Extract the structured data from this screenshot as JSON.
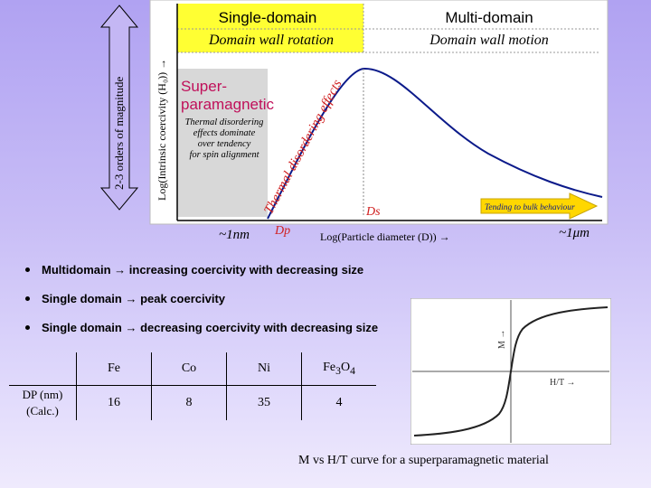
{
  "figure": {
    "orders_label": "2-3 orders of magnitude",
    "y_axis_label": "Log(Intrinsic coercivity (H₀)) →",
    "x_axis_label": "Log(Particle diameter (D)) →",
    "single_domain_title": "Single-domain",
    "single_domain_sub": "Domain wall rotation",
    "multi_domain_title": "Multi-domain",
    "multi_domain_sub": "Domain wall motion",
    "super_title_1": "Super-",
    "super_title_2": "paramagnetic",
    "thermal_note": [
      "Thermal disordering",
      "effects dominate",
      "over tendency",
      "for spin alignment"
    ],
    "thermal_effects_label": "Thermal disordering effects",
    "bulk_arrow_label": "Tending to bulk behaviour",
    "ds_label": "Ds",
    "dp_label": "Dp",
    "tick_left": "~1nm",
    "tick_right": "~1μm",
    "colors": {
      "yellow": "#ffff33",
      "pink_text": "#c0105a",
      "red_text": "#d02020",
      "curve": "#0b1a8a",
      "arrow_fill": "#ffd700"
    }
  },
  "bullets": [
    "Multidomain → increasing coercivity with decreasing size",
    "Single domain → peak coercivity",
    "Single domain → decreasing coercivity with decreasing size"
  ],
  "table": {
    "columns": [
      "Fe",
      "Co",
      "Ni",
      "Fe3O4"
    ],
    "row_label_line1": "DP (nm)",
    "row_label_line2": "(Calc.)",
    "values": [
      "16",
      "8",
      "35",
      "4"
    ]
  },
  "mh_plot": {
    "y_label": "M →",
    "x_label": "H/T →",
    "caption": "M vs H/T curve for a superparamagnetic material"
  }
}
